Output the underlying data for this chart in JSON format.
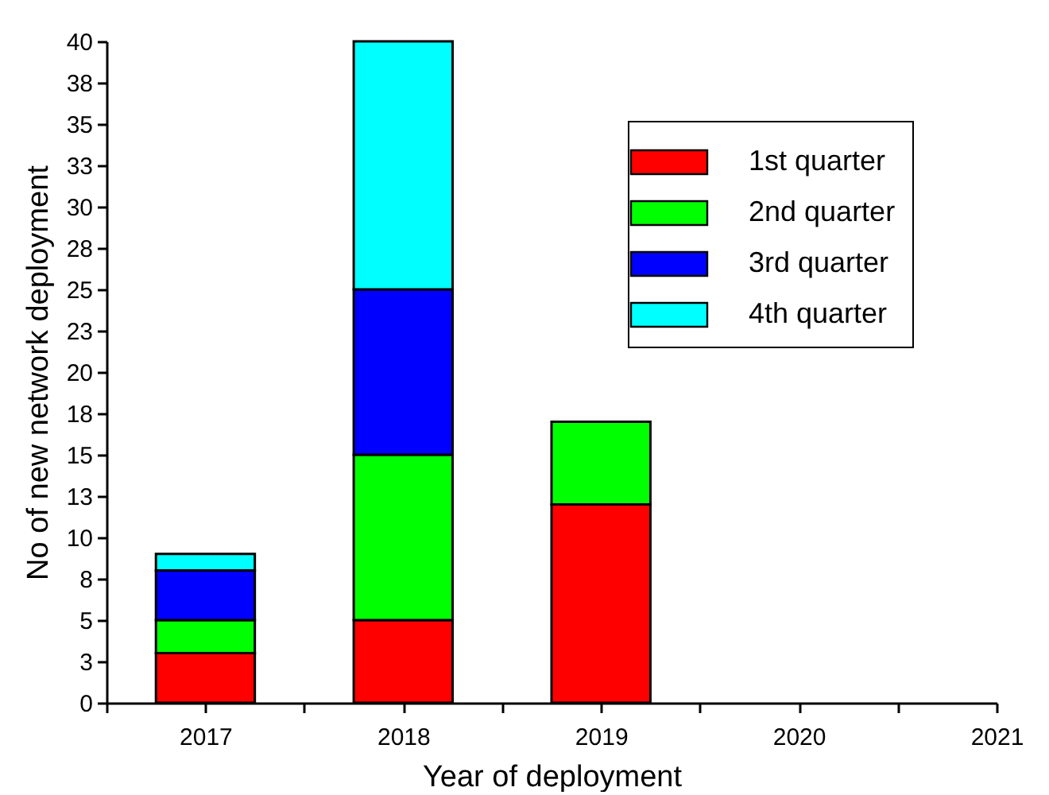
{
  "chart_data": {
    "type": "bar",
    "stacked": true,
    "xlabel": "Year of deployment",
    "ylabel": "No of new network deployment",
    "x": [
      2017,
      2018,
      2019
    ],
    "series": [
      {
        "name": "1st quarter",
        "color": "#ff0000",
        "values": [
          3,
          5,
          12
        ]
      },
      {
        "name": "2nd quarter",
        "color": "#00ff00",
        "values": [
          2,
          10,
          5
        ]
      },
      {
        "name": "3rd quarter",
        "color": "#0000ff",
        "values": [
          3,
          10,
          null
        ]
      },
      {
        "name": "4th quarter",
        "color": "#00ffff",
        "values": [
          1,
          15,
          null
        ]
      }
    ],
    "xlim": [
      2016.5,
      2021
    ],
    "xticks": [
      {
        "value": 2016.5,
        "label": null
      },
      2017,
      {
        "value": 2017.5,
        "label": null
      },
      2018,
      {
        "value": 2018.5,
        "label": null
      },
      2019,
      {
        "value": 2019.5,
        "label": null
      },
      2020,
      {
        "value": 2020.5,
        "label": null
      },
      2021
    ],
    "ylim": [
      0,
      40
    ],
    "yticks": [
      0,
      {
        "value": 2.5,
        "label": "3"
      },
      5,
      {
        "value": 7.5,
        "label": "8"
      },
      10,
      {
        "value": 12.5,
        "label": "13"
      },
      15,
      {
        "value": 17.5,
        "label": "18"
      },
      20,
      {
        "value": 22.5,
        "label": "23"
      },
      25,
      {
        "value": 27.5,
        "label": "28"
      },
      30,
      {
        "value": 32.5,
        "label": "33"
      },
      35,
      {
        "value": 37.5,
        "label": "38"
      },
      40
    ],
    "grid": false,
    "legend": "top right"
  }
}
